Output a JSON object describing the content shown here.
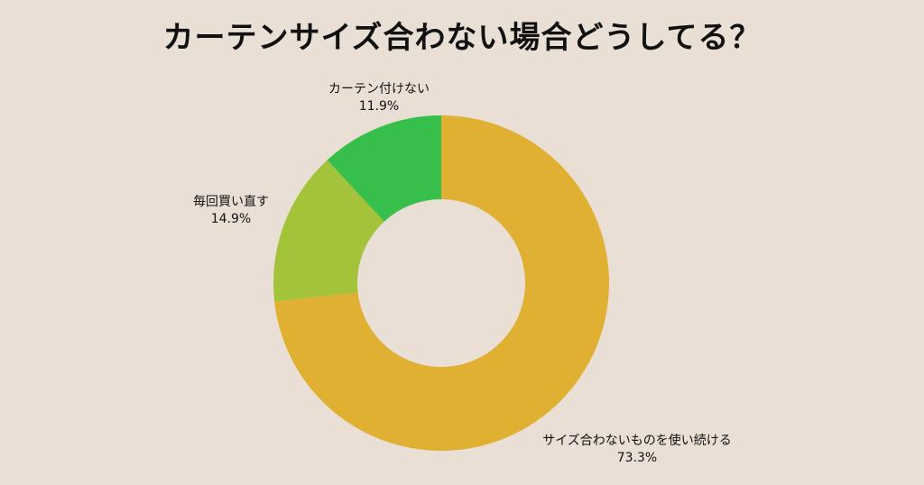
{
  "chart_data": {
    "type": "pie",
    "title": "カーテンサイズ合わない場合どうしてる？",
    "donut": true,
    "slices": [
      {
        "label": "サイズ合わないものを使い続ける",
        "value": 73.3,
        "value_label": "73.3%",
        "color": "#e0b033"
      },
      {
        "label": "毎回買い直す",
        "value": 14.9,
        "value_label": "14.9%",
        "color": "#a3c43a"
      },
      {
        "label": "カーテン付けない",
        "value": 11.9,
        "value_label": "11.9%",
        "color": "#36bf4a"
      }
    ]
  },
  "colors": {
    "background": "#e9dfd5",
    "text": "#111111"
  }
}
